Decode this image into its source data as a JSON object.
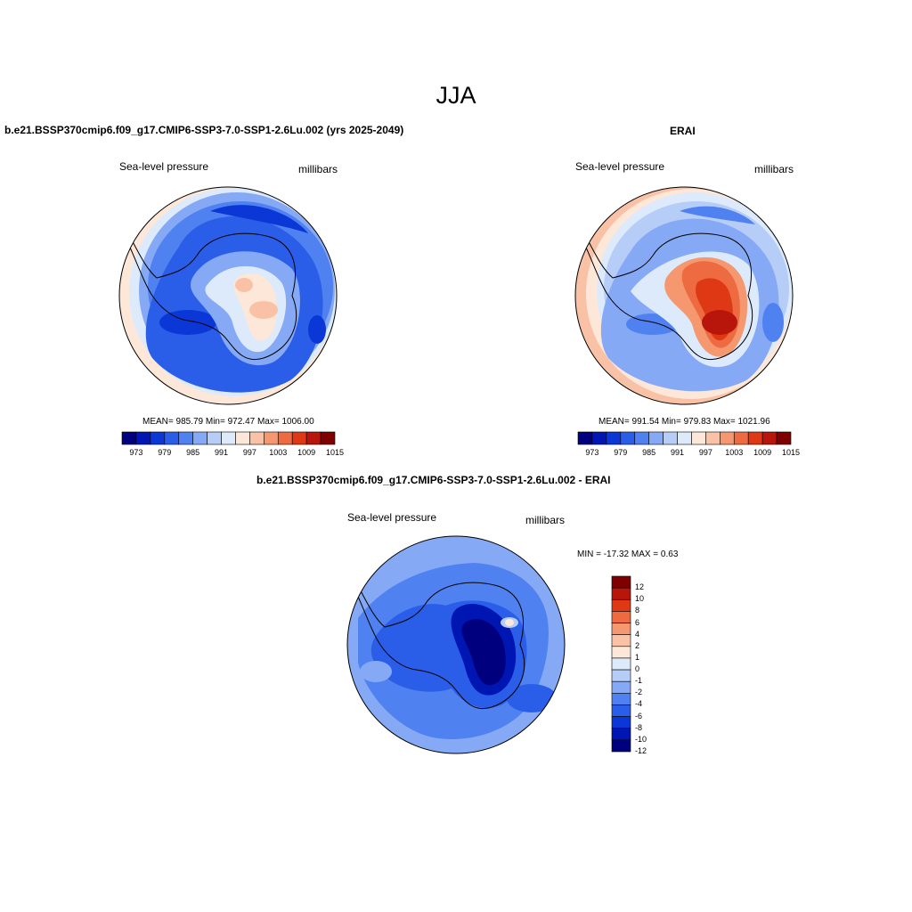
{
  "page_title": "JJA",
  "colors": {
    "levels": [
      "#00007f",
      "#0016b3",
      "#0a37d6",
      "#2a5ee8",
      "#4f82f0",
      "#86a9f5",
      "#b6cdf8",
      "#ddeafb",
      "#fde7d8",
      "#f9c2a6",
      "#f5986f",
      "#ee6a40",
      "#de3914",
      "#b8160a",
      "#7f0000"
    ],
    "coastline": "#000000"
  },
  "panels": [
    {
      "id": "model",
      "case_title": "b.e21.BSSP370cmip6.f09_g17.CMIP6-SSP3-7.0-SSP1-2.6Lu.002 (yrs 2025-2049)",
      "variable": "Sea-level pressure",
      "units": "millibars",
      "stats": "MEAN= 985.79  Min= 972.47  Max= 1006.00",
      "colorbar_labels": [
        "973",
        "979",
        "985",
        "991",
        "997",
        "1003",
        "1009",
        "1015"
      ]
    },
    {
      "id": "obs",
      "case_title": "ERAI",
      "variable": "Sea-level pressure",
      "units": "millibars",
      "stats": "MEAN= 991.54  Min= 979.83  Max= 1021.96",
      "colorbar_labels": [
        "973",
        "979",
        "985",
        "991",
        "997",
        "1003",
        "1009",
        "1015"
      ]
    },
    {
      "id": "diff",
      "case_title": "b.e21.BSSP370cmip6.f09_g17.CMIP6-SSP3-7.0-SSP1-2.6Lu.002 - ERAI",
      "variable": "Sea-level pressure",
      "units": "millibars",
      "stats": "MIN = -17.32 MAX =   0.63",
      "colorbar_labels": [
        "12",
        "10",
        "8",
        "6",
        "4",
        "2",
        "1",
        "0",
        "-1",
        "-2",
        "-4",
        "-6",
        "-8",
        "-10",
        "-12"
      ]
    }
  ]
}
